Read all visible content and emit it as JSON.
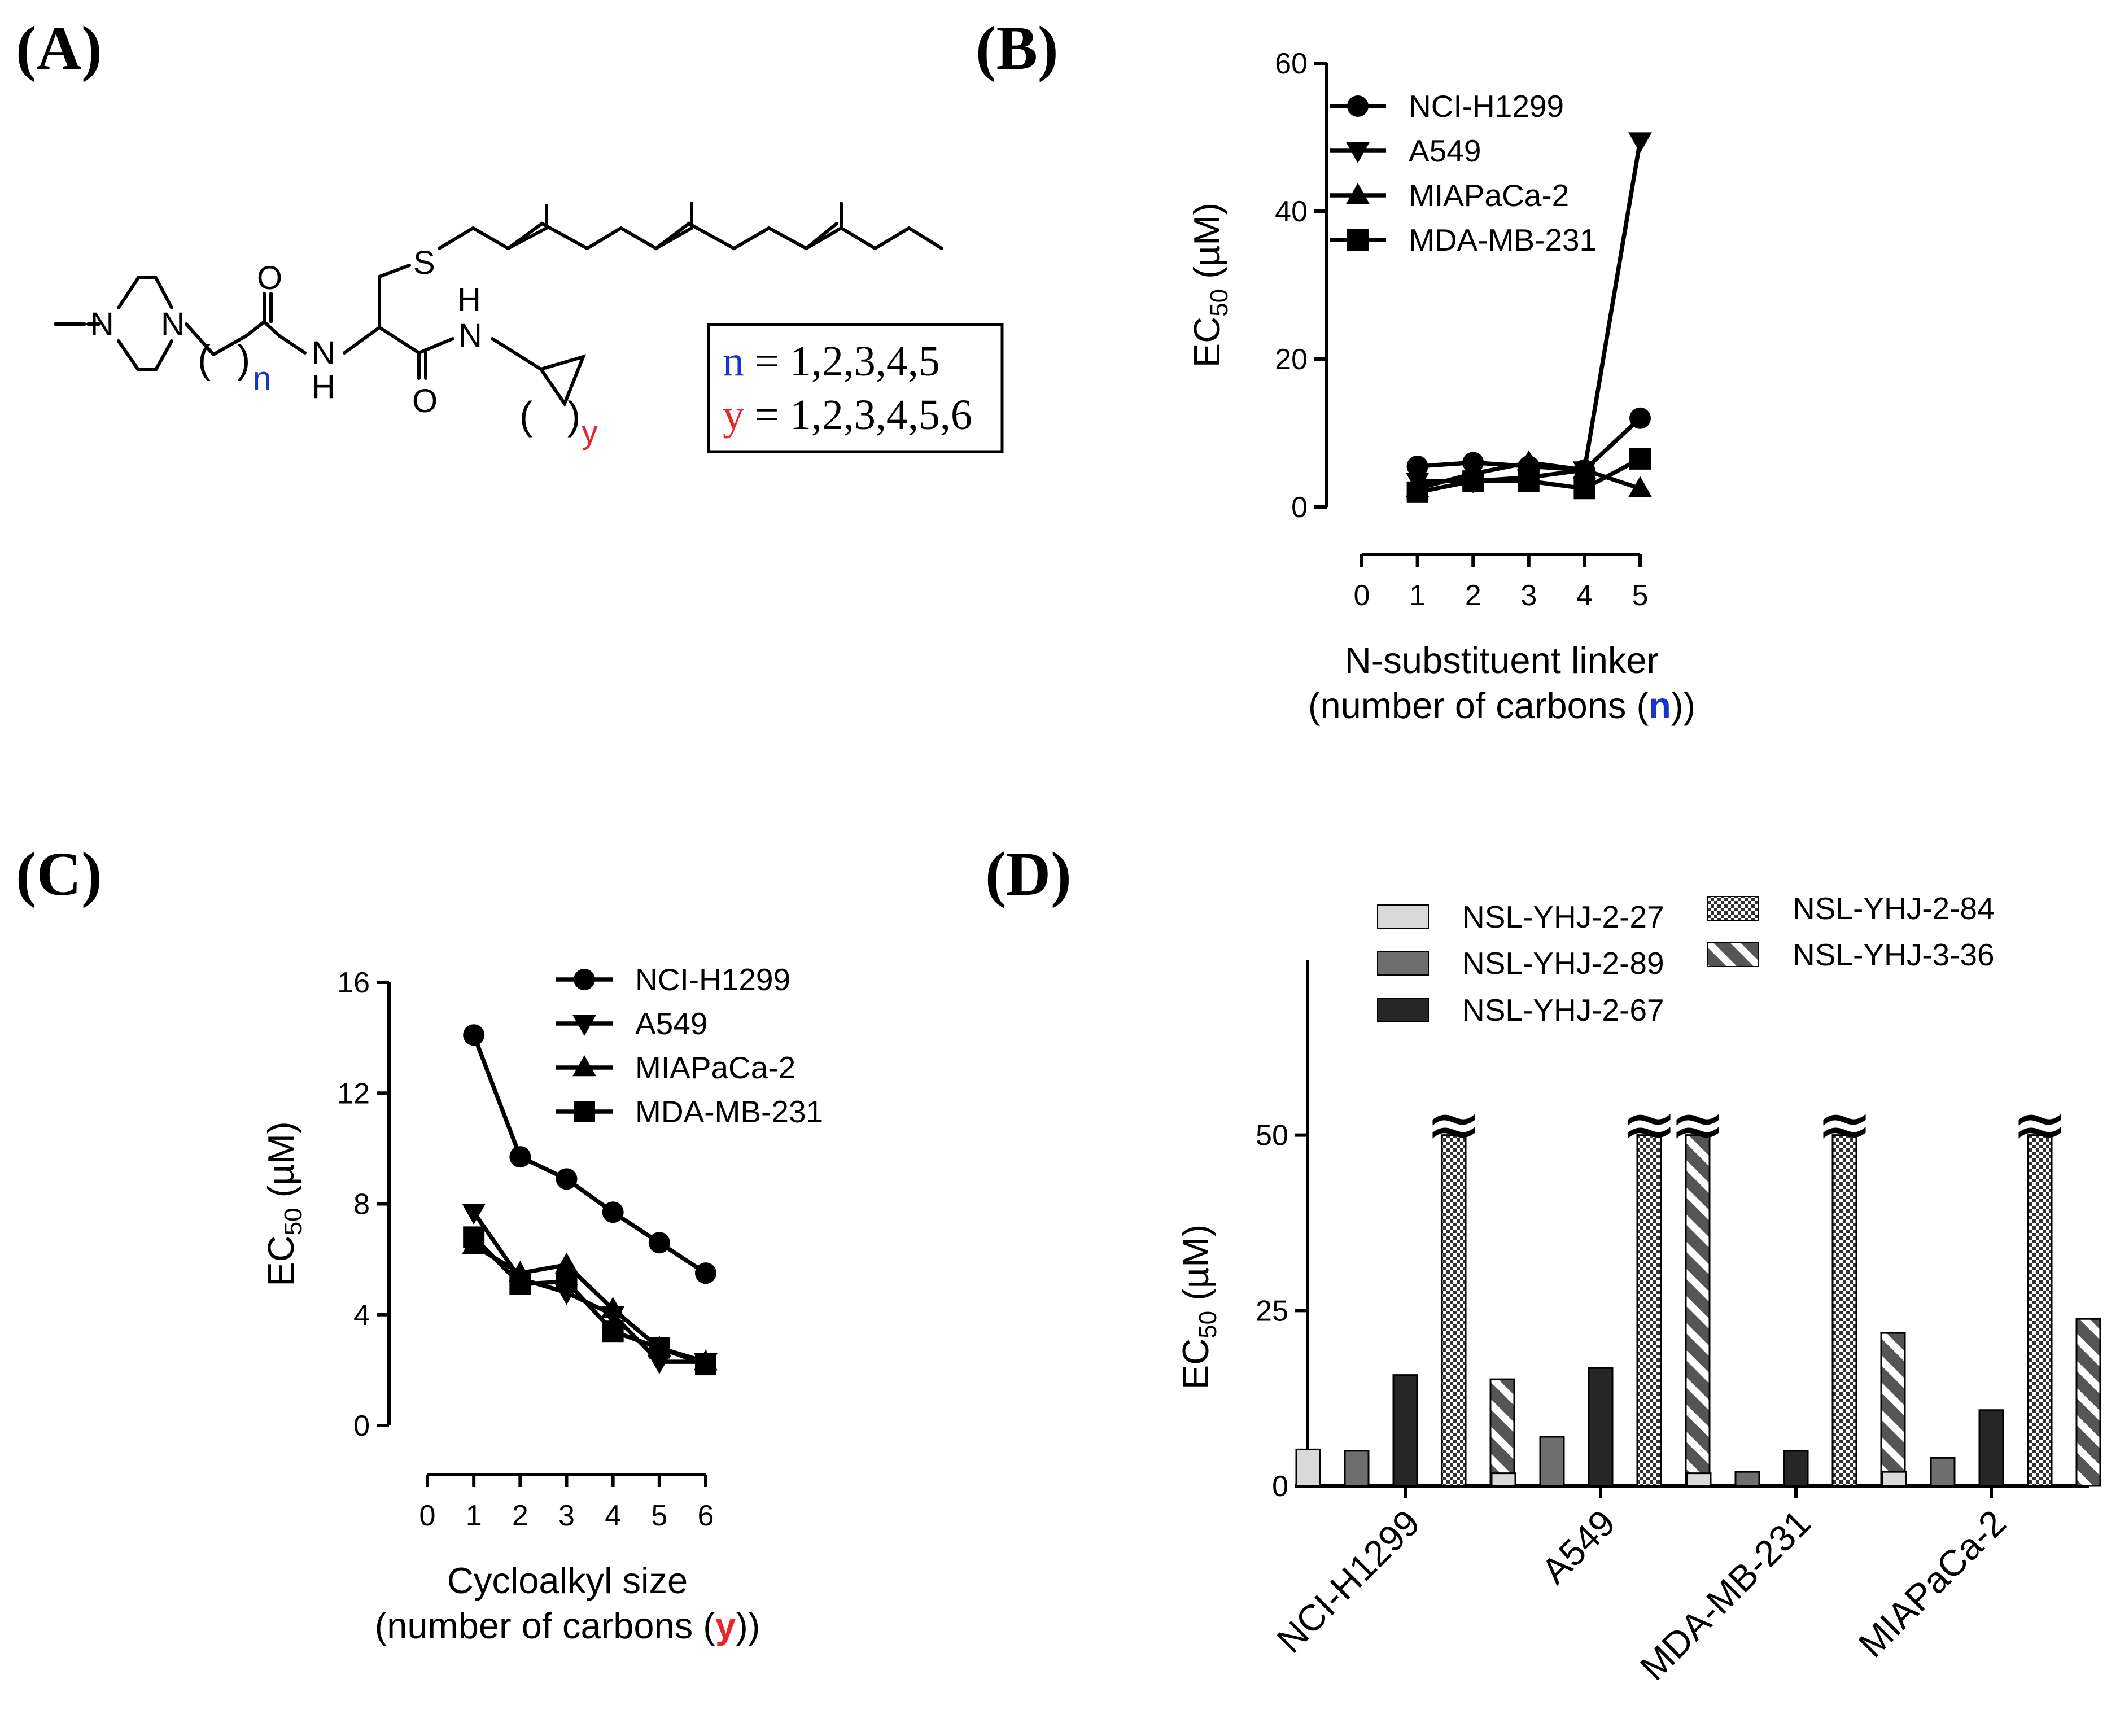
{
  "panels": {
    "A": "(A)",
    "B": "(B)",
    "C": "(C)",
    "D": "(D)"
  },
  "structure": {
    "atoms": {
      "N": "N",
      "NH": "N",
      "H": "H",
      "O": "O",
      "S": "S",
      "n_sub": "n",
      "y_sub": "y"
    },
    "paren_open": "(",
    "paren_close": ")",
    "box_line1_var": "n",
    "box_line1_rest": " = 1,2,3,4,5",
    "box_line2_var": "y",
    "box_line2_rest": " = 1,2,3,4,5,6"
  },
  "colors": {
    "n": "#1a33cc",
    "y": "#e8262a"
  },
  "chart_data": [
    {
      "panel": "B",
      "type": "line",
      "x": [
        1,
        2,
        3,
        4,
        5
      ],
      "xticks": [
        "0",
        "1",
        "2",
        "3",
        "4",
        "5"
      ],
      "xlim": [
        0,
        5
      ],
      "ylim": [
        0,
        60
      ],
      "yticks": [
        "0",
        "20",
        "40",
        "60"
      ],
      "ylabel": "EC",
      "ylabel_sub": "50",
      "ylabel_unit": " (µM)",
      "xlabel_line1": "N-substituent linker",
      "xlabel_line2_pre": "(number of carbons (",
      "xlabel_line2_var": "n",
      "xlabel_line2_post": "))",
      "legend_position": "top-left",
      "series": [
        {
          "name": "NCI-H1299",
          "marker": "circle",
          "values": [
            5.5,
            6,
            5.5,
            5,
            12
          ]
        },
        {
          "name": "A549",
          "marker": "triangle-down",
          "values": [
            3.5,
            3.5,
            4,
            5,
            49.5
          ]
        },
        {
          "name": "MIAPaCa-2",
          "marker": "triangle-up",
          "values": [
            2.5,
            4.5,
            6,
            5,
            2.5
          ]
        },
        {
          "name": "MDA-MB-231",
          "marker": "square",
          "values": [
            2,
            3.5,
            3.5,
            2.5,
            6.5
          ]
        }
      ]
    },
    {
      "panel": "C",
      "type": "line",
      "x": [
        1,
        2,
        3,
        4,
        5,
        6
      ],
      "xticks": [
        "0",
        "1",
        "2",
        "3",
        "4",
        "5",
        "6"
      ],
      "xlim": [
        0,
        6
      ],
      "ylim": [
        0,
        16
      ],
      "yticks": [
        "0",
        "4",
        "8",
        "12",
        "16"
      ],
      "ylabel": "EC",
      "ylabel_sub": "50",
      "ylabel_unit": " (µM)",
      "xlabel_line1": "Cycloalkyl size",
      "xlabel_line2_pre": "(number of carbons (",
      "xlabel_line2_var": "y",
      "xlabel_line2_post": "))",
      "legend_position": "top-right",
      "series": [
        {
          "name": "NCI-H1299",
          "marker": "circle",
          "values": [
            14.1,
            9.7,
            8.9,
            7.7,
            6.6,
            5.5
          ]
        },
        {
          "name": "A549",
          "marker": "triangle-down",
          "values": [
            7.7,
            5.3,
            4.8,
            4.0,
            2.3,
            2.3
          ]
        },
        {
          "name": "MIAPaCa-2",
          "marker": "triangle-up",
          "values": [
            6.5,
            5.5,
            5.8,
            4.2,
            2.8,
            2.3
          ]
        },
        {
          "name": "MDA-MB-231",
          "marker": "square",
          "values": [
            6.8,
            5.1,
            5.2,
            3.4,
            2.8,
            2.2
          ]
        }
      ]
    },
    {
      "panel": "D",
      "type": "bar",
      "categories": [
        "NCI-H1299",
        "A549",
        "MDA-MB-231",
        "MIAPaCa-2"
      ],
      "ylim": [
        0,
        75
      ],
      "yticks": [
        "0",
        "25",
        "50"
      ],
      "ylabel": "EC",
      "ylabel_sub": "50",
      "ylabel_unit": " (µM)",
      "legend_position": "top",
      "break_symbol": "≈",
      "series": [
        {
          "name": "NSL-YHJ-2-27",
          "pattern": "light-gray",
          "values": [
            5.2,
            1.8,
            1.8,
            2.0
          ],
          "broken": [
            false,
            false,
            false,
            false
          ]
        },
        {
          "name": "NSL-YHJ-2-89",
          "pattern": "mid-gray",
          "values": [
            5.0,
            7.0,
            2.0,
            4.0
          ],
          "broken": [
            false,
            false,
            false,
            false
          ]
        },
        {
          "name": "NSL-YHJ-2-67",
          "pattern": "dark",
          "values": [
            15.8,
            16.8,
            5.0,
            10.8
          ],
          "broken": [
            false,
            false,
            false,
            false
          ]
        },
        {
          "name": "NSL-YHJ-2-84",
          "pattern": "checker",
          "values": [
            50,
            50,
            50,
            50
          ],
          "broken": [
            true,
            true,
            true,
            true
          ]
        },
        {
          "name": "NSL-YHJ-3-36",
          "pattern": "hatch",
          "values": [
            15.2,
            50,
            21.8,
            23.8
          ],
          "broken": [
            false,
            true,
            false,
            false
          ]
        }
      ]
    }
  ]
}
